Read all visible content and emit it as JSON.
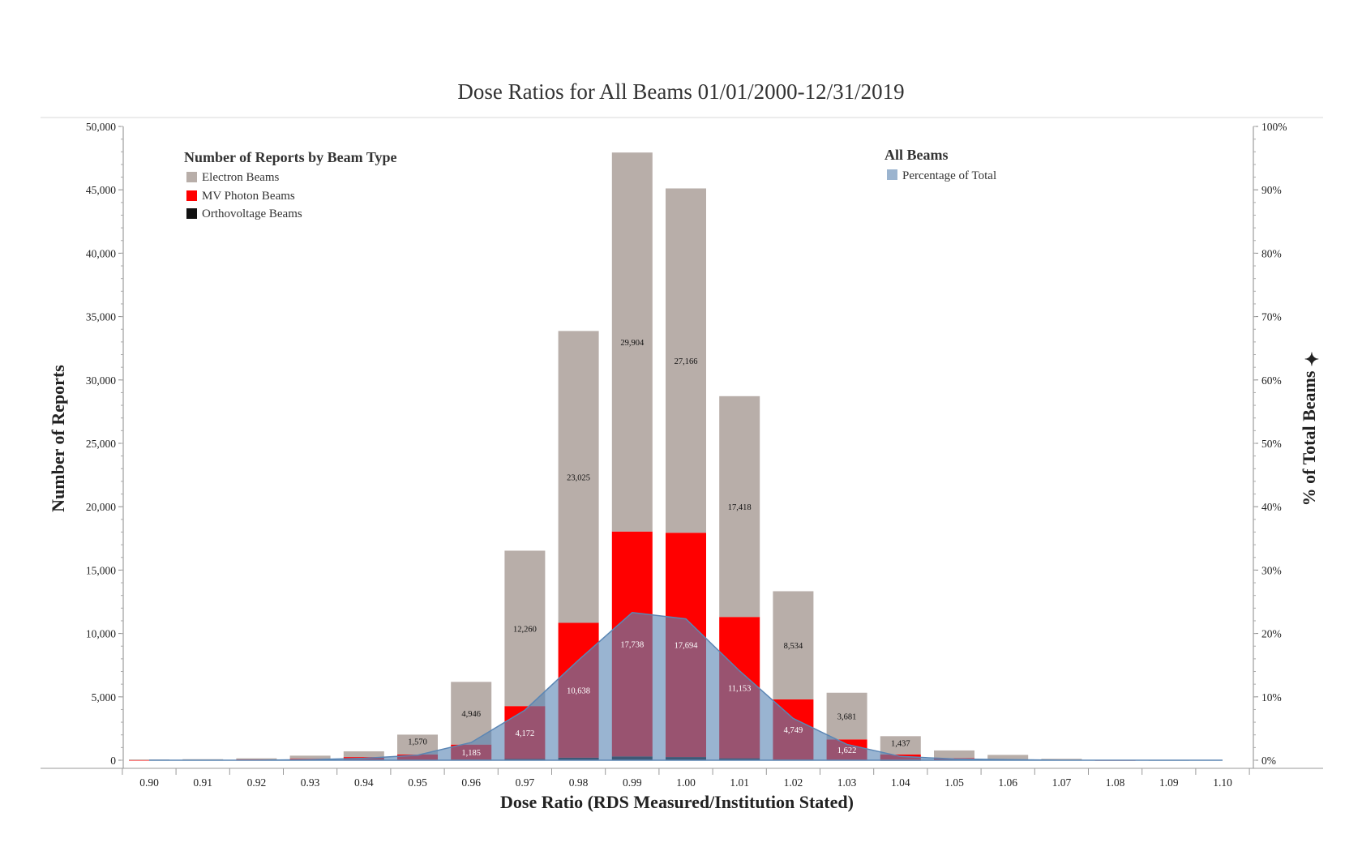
{
  "chart_data": {
    "type": "bar",
    "title": "Dose Ratios for All Beams 01/01/2000-12/31/2019",
    "xlabel": "Dose Ratio (RDS Measured/Institution Stated)",
    "ylabel": "Number of Reports",
    "y2label": "% of Total Beams",
    "ylim": [
      0,
      50000
    ],
    "y2lim": [
      0,
      100
    ],
    "y_ticks": [
      "50,000",
      "45,000",
      "40,000",
      "35,000",
      "30,000",
      "25,000",
      "20,000",
      "15,000",
      "10,000",
      "5,000",
      "0"
    ],
    "y_tick_values": [
      50000,
      45000,
      40000,
      35000,
      30000,
      25000,
      20000,
      15000,
      10000,
      5000,
      0
    ],
    "y2_ticks": [
      "100%",
      "90%",
      "80%",
      "70%",
      "60%",
      "50%",
      "40%",
      "30%",
      "20%",
      "10%",
      "0%"
    ],
    "y2_tick_values": [
      100,
      90,
      80,
      70,
      60,
      50,
      40,
      30,
      20,
      10,
      0
    ],
    "categories": [
      "0.90",
      "0.91",
      "0.92",
      "0.93",
      "0.94",
      "0.95",
      "0.96",
      "0.97",
      "0.98",
      "0.99",
      "1.00",
      "1.01",
      "1.02",
      "1.03",
      "1.04",
      "1.05",
      "1.06",
      "1.07",
      "1.08",
      "1.09",
      "1.10"
    ],
    "series": [
      {
        "name": "Orthovoltage Beams",
        "color": "#111111",
        "values": [
          0,
          0,
          0,
          0,
          0,
          0,
          50,
          100,
          200,
          300,
          250,
          150,
          50,
          20,
          10,
          0,
          0,
          0,
          0,
          0,
          0
        ]
      },
      {
        "name": "MV Photon Beams",
        "color": "#ff0000",
        "values": [
          20,
          30,
          60,
          120,
          250,
          450,
          1185,
          4172,
          10638,
          17738,
          17694,
          11153,
          4749,
          1622,
          450,
          170,
          70,
          30,
          10,
          0,
          0
        ],
        "labels": [
          "",
          "",
          "",
          "",
          "",
          "",
          "1,185",
          "4,172",
          "10,638",
          "17,738",
          "17,694",
          "11,153",
          "4,749",
          "1,622",
          "",
          "",
          "",
          "",
          "",
          "",
          ""
        ]
      },
      {
        "name": "Electron Beams",
        "color": "#b8aea9",
        "values": [
          40,
          50,
          90,
          240,
          450,
          1570,
          4946,
          12260,
          23025,
          29904,
          27166,
          17418,
          8534,
          3681,
          1437,
          600,
          350,
          80,
          20,
          10,
          0
        ],
        "labels": [
          "",
          "",
          "",
          "",
          "",
          "1,570",
          "4,946",
          "12,260",
          "23,025",
          "29,904",
          "27,166",
          "17,418",
          "8,534",
          "3,681",
          "1,437",
          "",
          "",
          "",
          "",
          "",
          ""
        ]
      }
    ],
    "overlay": {
      "name": "Percentage of Total",
      "type": "area",
      "axis": "right",
      "color": "#5b86b4",
      "values": [
        0,
        0,
        0,
        0.1,
        0.3,
        0.8,
        2.8,
        7.9,
        15.8,
        23.3,
        22.3,
        14.1,
        6.6,
        2.5,
        0.6,
        0.2,
        0.1,
        0,
        0,
        0,
        0
      ]
    },
    "legend": {
      "title": "Number of Reports by Beam Type",
      "items": [
        "Electron Beams",
        "MV Photon Beams",
        "Orthovoltage Beams"
      ],
      "placement": "top-left"
    },
    "legend2": {
      "title": "All Beams",
      "items": [
        "Percentage of Total"
      ],
      "placement": "top-right"
    },
    "grid": false
  }
}
